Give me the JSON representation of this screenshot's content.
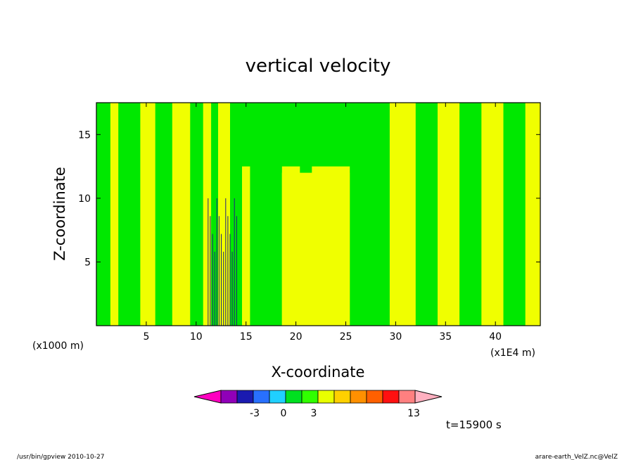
{
  "chart_data": {
    "type": "heatmap",
    "title": "vertical velocity",
    "xlabel": "X-coordinate",
    "ylabel": "Z-coordinate",
    "x_unit_left": "(x1000 m)",
    "x_unit_right": "(x1E4 m)",
    "xlim": [
      0,
      44.5
    ],
    "ylim": [
      0,
      17.5
    ],
    "x_ticks": [
      {
        "value": 5,
        "label": "5"
      },
      {
        "value": 10,
        "label": "10"
      },
      {
        "value": 15,
        "label": "15"
      },
      {
        "value": 20,
        "label": "20"
      },
      {
        "value": 25,
        "label": "25"
      },
      {
        "value": 30,
        "label": "30"
      },
      {
        "value": 35,
        "label": "35"
      },
      {
        "value": 40,
        "label": "40"
      }
    ],
    "y_ticks": [
      {
        "value": 5,
        "label": "5"
      },
      {
        "value": 10,
        "label": "10"
      },
      {
        "value": 15,
        "label": "15"
      }
    ],
    "levels": {
      "colors": [
        "#ff00c0",
        "#9000b8",
        "#1a1ab0",
        "#2870ff",
        "#20d0ff",
        "#00e020",
        "#30ff00",
        "#e8ff00",
        "#ffd000",
        "#ff9000",
        "#ff6000",
        "#ff1010",
        "#ff8080",
        "#ffb0c0"
      ],
      "labels": [
        {
          "level": "-3",
          "label": "-3"
        },
        {
          "level": "0",
          "label": "0"
        },
        {
          "level": "3",
          "label": "3"
        },
        {
          "level": "13",
          "label": "13"
        }
      ]
    },
    "field_colors": {
      "negative": "#00e800",
      "positive": "#f0ff00",
      "strong": "#202080"
    },
    "grid": false,
    "legend": "bottom colorbar"
  },
  "annotations": {
    "time": "t=15900 s",
    "footer_left": "/usr/bin/gpview   2010-10-27",
    "footer_right": "arare-earth_VelZ.nc@VelZ"
  }
}
